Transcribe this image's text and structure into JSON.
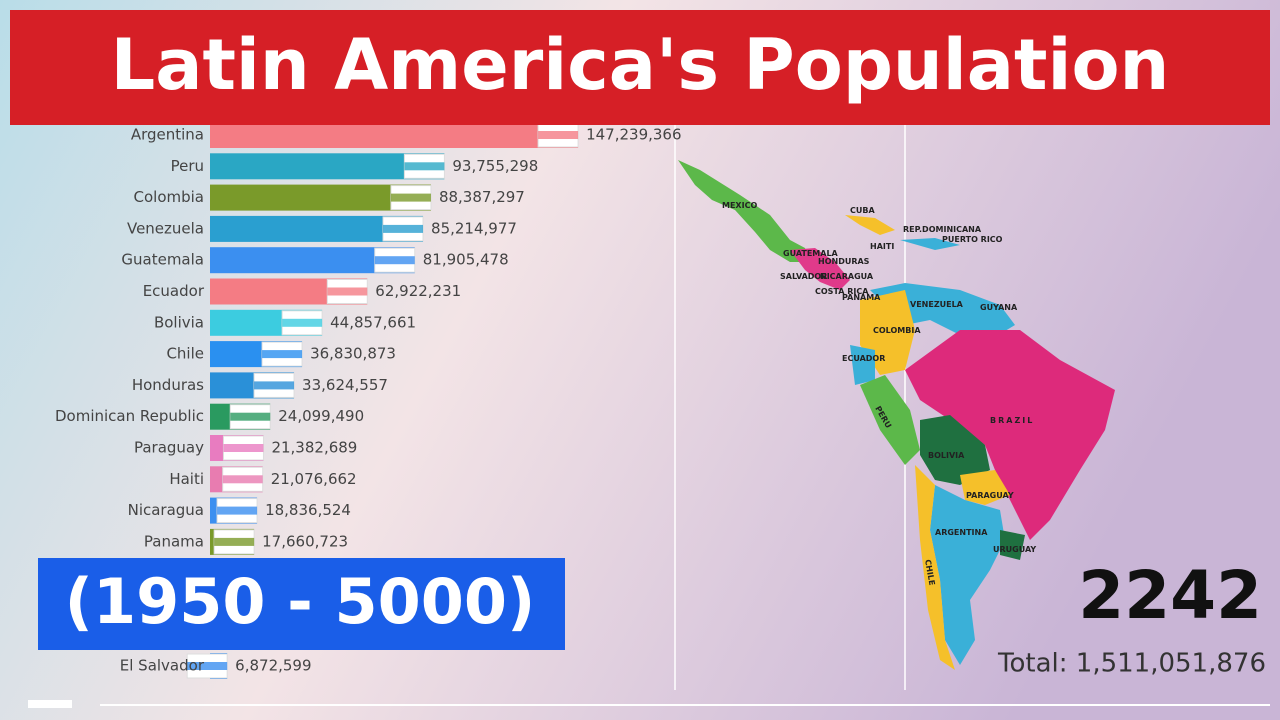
{
  "chart_data": {
    "type": "bar",
    "orientation": "horizontal",
    "title": "Latin America's Population",
    "subtitle": "(1950 - 5000)",
    "year": 2242,
    "total_label": "Total: 1,511,051,876",
    "categories": [
      "Argentina",
      "Peru",
      "Colombia",
      "Venezuela",
      "Guatemala",
      "Ecuador",
      "Bolivia",
      "Chile",
      "Honduras",
      "Dominican Republic",
      "Paraguay",
      "Haiti",
      "Nicaragua",
      "Panama",
      "El Salvador"
    ],
    "values": [
      147239366,
      93755298,
      88387297,
      85214977,
      81905478,
      62922231,
      44857661,
      36830873,
      33624557,
      24099490,
      21382689,
      21076662,
      18836524,
      17660723,
      6872599
    ],
    "value_labels": [
      "147,239,366",
      "93,755,298",
      "88,387,297",
      "85,214,977",
      "81,905,478",
      "62,922,231",
      "44,857,661",
      "36,830,873",
      "33,624,557",
      "24,099,490",
      "21,382,689",
      "21,076,662",
      "18,836,524",
      "17,660,723",
      "6,872,599"
    ],
    "colors": [
      "#f47c84",
      "#2aa7c4",
      "#7a9a2a",
      "#2a9fd0",
      "#3b8ff0",
      "#f47c84",
      "#3ccce0",
      "#2a90f0",
      "#2a90d8",
      "#2a9a60",
      "#e87cc0",
      "#e87cb0",
      "#3b8ff0",
      "#7a9a2a",
      "#3b8ff0"
    ],
    "xlim": [
      0,
      400000000
    ],
    "map_labels": [
      "MEXICO",
      "CUBA",
      "REP.DOMINICANA",
      "PUERTO RICO",
      "HAITI",
      "GUATEMALA",
      "HONDURAS",
      "SALVADOR",
      "NICARAGUA",
      "COSTA RICA",
      "PANAMA",
      "VENEZUELA",
      "GUYANA",
      "COLOMBIA",
      "ECUADOR",
      "PERU",
      "BRAZIL",
      "BOLIVIA",
      "PARAGUAY",
      "ARGENTINA",
      "URUGUAY",
      "CHILE"
    ]
  }
}
